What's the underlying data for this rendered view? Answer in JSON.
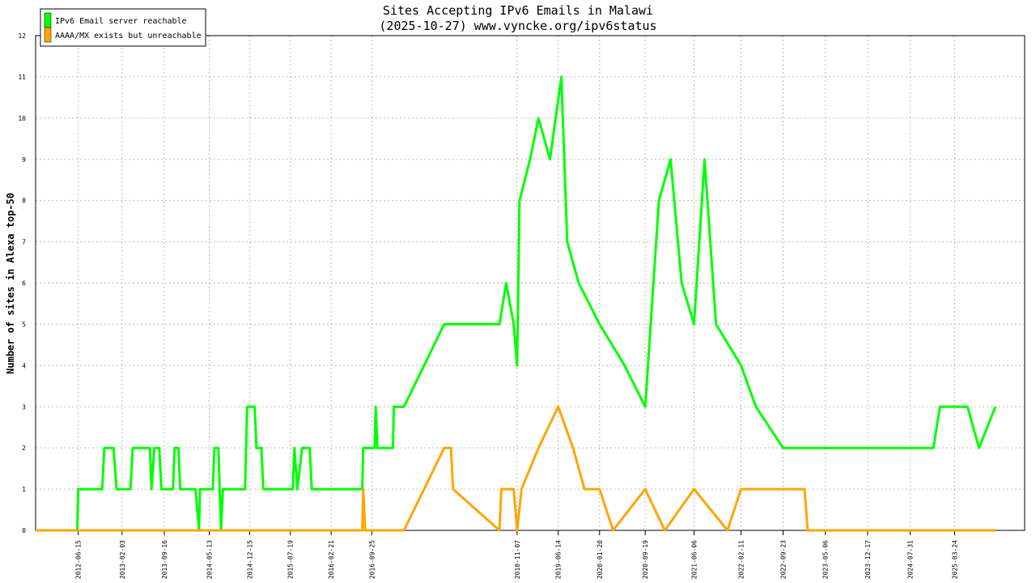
{
  "chart_data": {
    "type": "line",
    "title": "Sites Accepting IPv6 Emails in Malawi",
    "subtitle": "(2025-10-27) www.vyncke.org/ipv6status",
    "ylabel": "Number of sites in Alexa top-50",
    "xlabel": "",
    "ylim": [
      0,
      12
    ],
    "yticks": [
      0,
      1,
      2,
      3,
      4,
      5,
      6,
      7,
      8,
      9,
      10,
      11,
      12
    ],
    "xticks": [
      "2012-06-15",
      "2013-02-03",
      "2013-09-16",
      "2014-05-13",
      "2014-12-15",
      "2015-07-19",
      "2016-02-21",
      "2016-09-25",
      "2018-11-07",
      "2019-06-14",
      "2020-01-20",
      "2020-09-19",
      "2021-06-06",
      "2022-02-11",
      "2022-09-23",
      "2023-05-06",
      "2023-12-17",
      "2024-07-31",
      "2025-03-24"
    ],
    "grid": true,
    "legend_position": "top-left",
    "series": [
      {
        "name": "IPv6 Email server reachable",
        "color": "#00ff00",
        "points": [
          [
            "2011-11-01",
            0
          ],
          [
            "2012-06-10",
            0
          ],
          [
            "2012-06-15",
            1
          ],
          [
            "2012-10-20",
            1
          ],
          [
            "2012-11-01",
            2
          ],
          [
            "2012-12-20",
            2
          ],
          [
            "2013-01-05",
            1
          ],
          [
            "2013-03-20",
            1
          ],
          [
            "2013-04-01",
            2
          ],
          [
            "2013-07-01",
            2
          ],
          [
            "2013-07-10",
            1
          ],
          [
            "2013-07-25",
            2
          ],
          [
            "2013-08-20",
            2
          ],
          [
            "2013-09-01",
            1
          ],
          [
            "2013-11-01",
            1
          ],
          [
            "2013-11-10",
            2
          ],
          [
            "2013-11-30",
            2
          ],
          [
            "2013-12-10",
            1
          ],
          [
            "2014-03-01",
            1
          ],
          [
            "2014-03-20",
            0
          ],
          [
            "2014-03-25",
            1
          ],
          [
            "2014-06-01",
            1
          ],
          [
            "2014-06-10",
            2
          ],
          [
            "2014-07-01",
            2
          ],
          [
            "2014-07-15",
            0
          ],
          [
            "2014-07-25",
            1
          ],
          [
            "2014-11-20",
            1
          ],
          [
            "2014-12-01",
            3
          ],
          [
            "2015-01-10",
            3
          ],
          [
            "2015-01-20",
            2
          ],
          [
            "2015-02-15",
            2
          ],
          [
            "2015-02-25",
            1
          ],
          [
            "2015-08-01",
            1
          ],
          [
            "2015-08-10",
            2
          ],
          [
            "2015-08-25",
            1
          ],
          [
            "2015-09-20",
            2
          ],
          [
            "2015-10-30",
            2
          ],
          [
            "2015-11-10",
            1
          ],
          [
            "2016-08-05",
            1
          ],
          [
            "2016-08-10",
            2
          ],
          [
            "2016-10-10",
            2
          ],
          [
            "2016-10-15",
            3
          ],
          [
            "2016-10-25",
            2
          ],
          [
            "2017-01-15",
            2
          ],
          [
            "2017-01-20",
            3
          ],
          [
            "2017-03-15",
            3
          ],
          [
            "2017-10-15",
            5
          ],
          [
            "2018-08-05",
            5
          ],
          [
            "2018-09-10",
            6
          ],
          [
            "2018-10-20",
            5
          ],
          [
            "2018-11-07",
            4
          ],
          [
            "2018-11-20",
            8
          ],
          [
            "2019-01-15",
            9
          ],
          [
            "2019-03-01",
            10
          ],
          [
            "2019-05-01",
            9
          ],
          [
            "2019-07-01",
            11
          ],
          [
            "2019-08-01",
            7
          ],
          [
            "2019-10-01",
            6
          ],
          [
            "2020-01-20",
            5
          ],
          [
            "2020-06-01",
            4
          ],
          [
            "2020-09-19",
            3
          ],
          [
            "2020-12-01",
            8
          ],
          [
            "2021-02-01",
            9
          ],
          [
            "2021-04-01",
            6
          ],
          [
            "2021-06-06",
            5
          ],
          [
            "2021-08-01",
            9
          ],
          [
            "2021-10-01",
            5
          ],
          [
            "2022-02-11",
            4
          ],
          [
            "2022-05-01",
            3
          ],
          [
            "2022-09-23",
            2
          ],
          [
            "2023-01-01",
            2
          ],
          [
            "2023-05-06",
            2
          ],
          [
            "2023-12-17",
            2
          ],
          [
            "2024-07-31",
            2
          ],
          [
            "2024-12-01",
            2
          ],
          [
            "2025-01-05",
            3
          ],
          [
            "2025-06-01",
            3
          ],
          [
            "2025-08-01",
            2
          ],
          [
            "2025-10-27",
            3
          ]
        ]
      },
      {
        "name": "AAAA/MX exists but unreachable",
        "color": "#ffa500",
        "points": [
          [
            "2011-11-01",
            0
          ],
          [
            "2016-08-05",
            0
          ],
          [
            "2016-08-10",
            1
          ],
          [
            "2016-08-20",
            0
          ],
          [
            "2017-03-15",
            0
          ],
          [
            "2017-10-15",
            2
          ],
          [
            "2017-11-20",
            2
          ],
          [
            "2017-12-01",
            1
          ],
          [
            "2018-08-05",
            0
          ],
          [
            "2018-08-15",
            1
          ],
          [
            "2018-10-20",
            1
          ],
          [
            "2018-11-07",
            0
          ],
          [
            "2018-12-01",
            1
          ],
          [
            "2019-03-01",
            2
          ],
          [
            "2019-06-14",
            3
          ],
          [
            "2019-09-01",
            2
          ],
          [
            "2019-11-01",
            1
          ],
          [
            "2020-01-20",
            1
          ],
          [
            "2020-04-01",
            0
          ],
          [
            "2020-09-19",
            1
          ],
          [
            "2021-01-01",
            0
          ],
          [
            "2021-06-06",
            1
          ],
          [
            "2021-12-01",
            0
          ],
          [
            "2022-02-11",
            1
          ],
          [
            "2022-09-23",
            1
          ],
          [
            "2023-01-15",
            1
          ],
          [
            "2023-02-01",
            0
          ],
          [
            "2025-10-27",
            0
          ]
        ]
      }
    ]
  }
}
